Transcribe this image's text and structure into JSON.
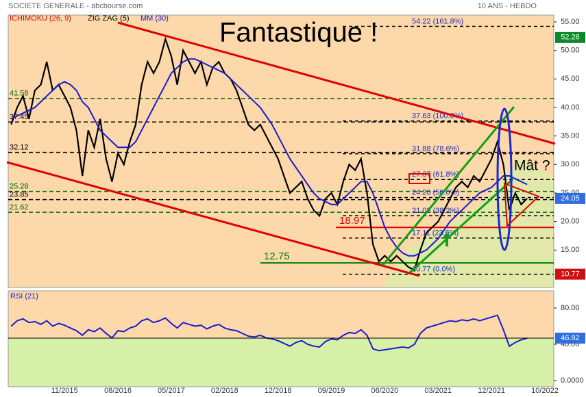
{
  "chart_data": [
    {
      "type": "line",
      "title": "SOCIETE GENERALE - abcbourse.com",
      "subtitle": "10 ANS - HEBDO",
      "indicator": "ICHIMOKU (26, 9)",
      "headline": "Fantastique  !",
      "question": "Mât ?",
      "categories": [
        null,
        null,
        null,
        null,
        null,
        null,
        null,
        null,
        null,
        "11/2015",
        null,
        null,
        null,
        null,
        null,
        null,
        null,
        null,
        "08/2016",
        null,
        null,
        null,
        null,
        null,
        null,
        null,
        null,
        "05/2017",
        null,
        null,
        null,
        null,
        null,
        null,
        null,
        null,
        "02/2018",
        null,
        null,
        null,
        null,
        null,
        null,
        null,
        null,
        "12/2018",
        null,
        null,
        null,
        null,
        null,
        null,
        null,
        null,
        "09/2019",
        null,
        null,
        null,
        null,
        null,
        null,
        null,
        null,
        "06/2020",
        null,
        null,
        null,
        null,
        null,
        null,
        null,
        null,
        "03/2021",
        null,
        null,
        null,
        null,
        null,
        null,
        null,
        null,
        "12/2021",
        null,
        null,
        null,
        null,
        null,
        null,
        null,
        null,
        "10/2022",
        null
      ],
      "series": [
        {
          "name": "ZIG ZAG (5)",
          "color": "#000000",
          "values": [
            37,
            40,
            42,
            38,
            43,
            44,
            48,
            43,
            44,
            42,
            40,
            36,
            28,
            36,
            33,
            38,
            31,
            27,
            32,
            30,
            34,
            37,
            44,
            48,
            46,
            48,
            52,
            49,
            44,
            50,
            48,
            46,
            48,
            44,
            47,
            48,
            46,
            45,
            43,
            40,
            37,
            36,
            37,
            35,
            33,
            31,
            28,
            25,
            26,
            27,
            24,
            22,
            21,
            24,
            25,
            23,
            27,
            30,
            29,
            31,
            25,
            16,
            13,
            14,
            13,
            14,
            13,
            12,
            11.5,
            15,
            18,
            19,
            20,
            22,
            24,
            26,
            27,
            26,
            28,
            27,
            29,
            31,
            34,
            30,
            22,
            25,
            23,
            24.05,
            null,
            null,
            null,
            null
          ]
        },
        {
          "name": "MM (30)",
          "color": "#1a1ad0",
          "values": [
            38,
            38.5,
            39,
            39.5,
            40,
            41,
            42,
            43,
            44,
            44.5,
            44,
            43,
            41,
            40,
            38,
            36,
            35,
            34,
            33,
            33,
            33,
            34,
            36,
            38,
            40,
            42,
            44,
            46,
            47,
            48,
            48.5,
            48.5,
            48,
            47.5,
            47,
            46.5,
            46,
            45,
            44,
            43,
            42,
            41,
            40,
            38.5,
            37,
            35,
            33,
            31,
            29.5,
            28,
            26.5,
            25,
            24,
            23.5,
            23,
            23,
            24,
            25,
            26,
            27,
            27,
            25,
            22,
            19,
            17,
            15.5,
            14.5,
            14,
            14,
            14.5,
            15,
            16,
            17,
            18.5,
            20,
            21,
            22,
            23,
            24,
            25,
            25.5,
            26,
            27,
            28,
            28,
            27.5,
            27,
            26.5,
            null,
            null,
            null,
            null
          ]
        }
      ],
      "ylim": [
        8.44,
        56.2
      ],
      "yticks": [
        {
          "value": 55,
          "label": "55.00"
        },
        {
          "value": 50,
          "label": "50.00"
        },
        {
          "value": 45,
          "label": "45.00"
        },
        {
          "value": 40,
          "label": "40.00"
        },
        {
          "value": 35,
          "label": "35.00"
        },
        {
          "value": 30,
          "label": "30.00"
        },
        {
          "value": 25,
          "label": "25.00"
        },
        {
          "value": 20,
          "label": "20.00"
        },
        {
          "value": 15,
          "label": "15.00"
        }
      ],
      "fib_levels": [
        {
          "value": 54.22,
          "label": "54.22  (161.8%)"
        },
        {
          "value": 37.63,
          "label": "37.63  (100.0%)"
        },
        {
          "value": 31.88,
          "label": "31.88  (78.6%)"
        },
        {
          "value": 27.37,
          "label": "27.37  (61.8%)"
        },
        {
          "value": 24.2,
          "label": "24.20  (50.0%)"
        },
        {
          "value": 21.03,
          "label": "21.03  (38.2%)"
        },
        {
          "value": 17.11,
          "label": "17.11  (23.6%)"
        },
        {
          "value": 10.77,
          "label": "10.77  (0.0%)"
        }
      ],
      "levels": [
        {
          "value": 41.58,
          "color": "#006400"
        },
        {
          "value": 37.45,
          "color": "#000000"
        },
        {
          "value": 32.12,
          "color": "#000000"
        },
        {
          "value": 25.28,
          "color": "#006400"
        },
        {
          "value": 23.85,
          "color": "#000000"
        },
        {
          "value": 21.62,
          "color": "#006400"
        }
      ],
      "marked_levels": [
        {
          "value": 18.97,
          "color": "#e00000"
        },
        {
          "value": 12.75,
          "color": "#008000"
        }
      ],
      "price_tags": [
        {
          "value": 52.26,
          "color": "#0a8a2a"
        },
        {
          "value": 24.05,
          "color": "#2f6fe0"
        },
        {
          "value": 10.77,
          "color": "#d01010"
        }
      ]
    },
    {
      "type": "line",
      "series": [
        {
          "name": "RSI (21)",
          "color": "#1a1ad0",
          "values": [
            60,
            66,
            68,
            64,
            65,
            62,
            66,
            60,
            63,
            61,
            58,
            55,
            50,
            56,
            54,
            58,
            52,
            47,
            55,
            54,
            58,
            60,
            66,
            68,
            64,
            66,
            69,
            63,
            58,
            64,
            62,
            60,
            61,
            57,
            60,
            62,
            58,
            56,
            55,
            52,
            49,
            48,
            50,
            47,
            46,
            44,
            41,
            38,
            42,
            44,
            40,
            38,
            37,
            43,
            46,
            45,
            50,
            53,
            52,
            56,
            50,
            35,
            33,
            34,
            35,
            36,
            37,
            36,
            40,
            52,
            58,
            60,
            62,
            64,
            66,
            65,
            67,
            66,
            68,
            66,
            68,
            70,
            72,
            56,
            38,
            42,
            45,
            46.82,
            null,
            null,
            null,
            null
          ]
        }
      ],
      "ylim": [
        -6.8,
        98.9
      ],
      "yticks": [
        {
          "value": 80,
          "label": "80.00"
        },
        {
          "value": 40,
          "label": "40.00"
        },
        {
          "value": 0,
          "label": "0.0000"
        }
      ],
      "last_value": {
        "value": 46.82,
        "color": "#2f6fe0"
      }
    }
  ]
}
